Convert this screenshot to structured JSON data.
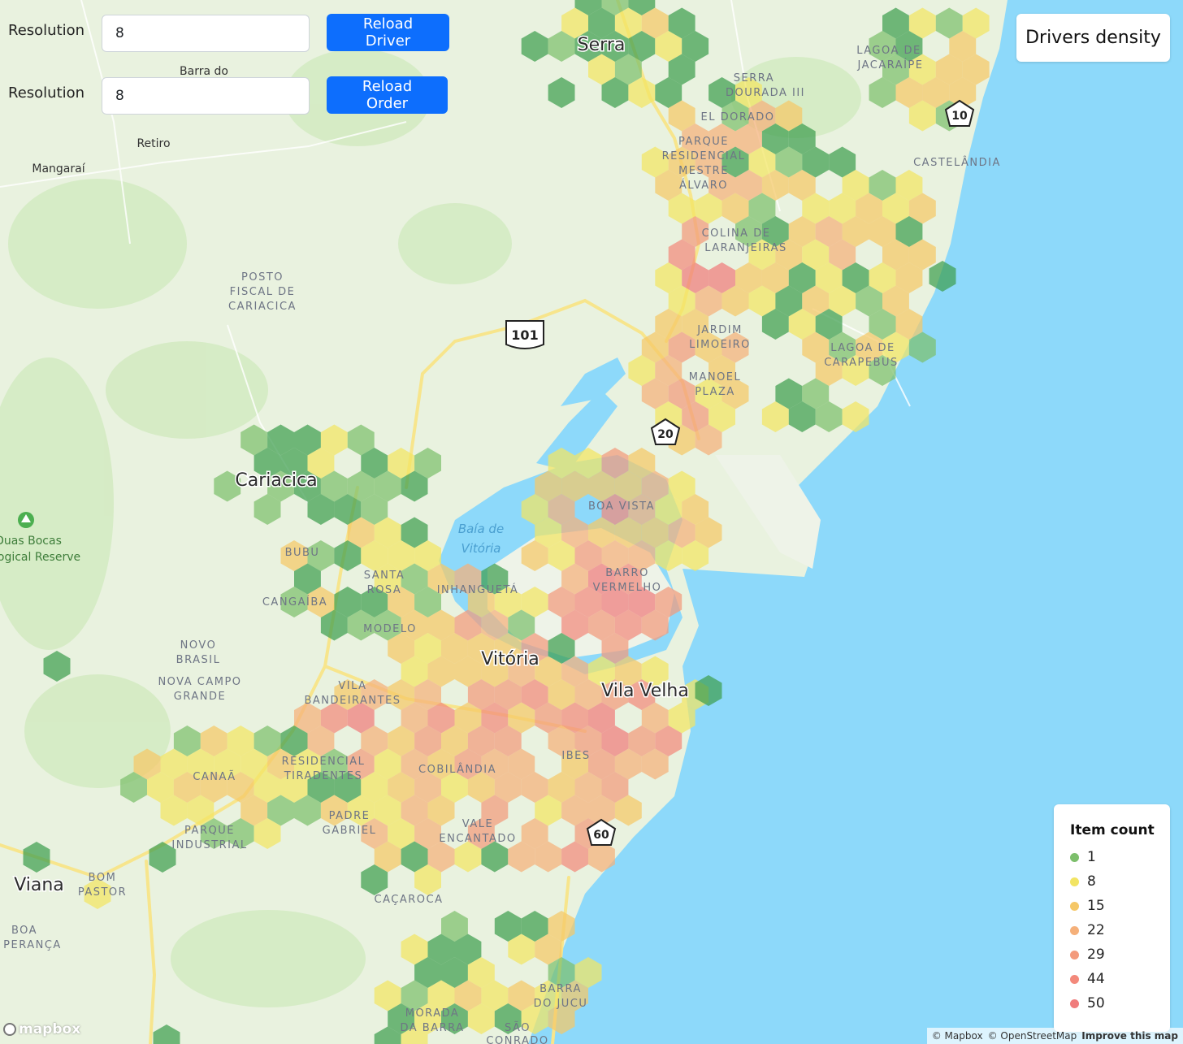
{
  "controls": {
    "driver": {
      "label": "Resolution",
      "value": "8",
      "button": "Reload Driver"
    },
    "order": {
      "label": "Resolution",
      "value": "8",
      "button": "Reload Order"
    }
  },
  "title": "Drivers density",
  "legend": {
    "title": "Item count",
    "items": [
      {
        "label": "1",
        "color": "#7dbf6c"
      },
      {
        "label": "8",
        "color": "#f2e463"
      },
      {
        "label": "15",
        "color": "#f5c767"
      },
      {
        "label": "22",
        "color": "#f5b07a"
      },
      {
        "label": "29",
        "color": "#f39a7c"
      },
      {
        "label": "44",
        "color": "#f3897b"
      },
      {
        "label": "50",
        "color": "#f07c7c"
      }
    ]
  },
  "colors": {
    "land": "#e9f2df",
    "water": "#8dd9fa",
    "road": "#f7e58c",
    "button": "#0d6efd"
  },
  "map": {
    "shields": [
      "101",
      "20",
      "10",
      "60"
    ],
    "labels": [
      {
        "text": "Serra",
        "kind": "city"
      },
      {
        "text": "Cariacica",
        "kind": "city"
      },
      {
        "text": "Vitória",
        "kind": "city"
      },
      {
        "text": "Vila Velha",
        "kind": "city"
      },
      {
        "text": "Viana",
        "kind": "city"
      },
      {
        "text": "Barra do",
        "kind": "place"
      },
      {
        "text": "Retiro",
        "kind": "place"
      },
      {
        "text": "Mangaraí",
        "kind": "place"
      },
      {
        "text": "POSTO",
        "kind": "hood"
      },
      {
        "text": "FISCAL DE",
        "kind": "hood"
      },
      {
        "text": "CARIACICA",
        "kind": "hood"
      },
      {
        "text": "SERRA",
        "kind": "hood"
      },
      {
        "text": "DOURADA III",
        "kind": "hood"
      },
      {
        "text": "EL DORADO",
        "kind": "hood"
      },
      {
        "text": "PARQUE",
        "kind": "hood"
      },
      {
        "text": "RESIDENCIAL",
        "kind": "hood"
      },
      {
        "text": "MESTRE",
        "kind": "hood"
      },
      {
        "text": "ÁLVARO",
        "kind": "hood"
      },
      {
        "text": "LAGOA DE",
        "kind": "hood"
      },
      {
        "text": "JACARAÍPE",
        "kind": "hood"
      },
      {
        "text": "CASTELÂNDIA",
        "kind": "hood"
      },
      {
        "text": "COLINA DE",
        "kind": "hood"
      },
      {
        "text": "LARANJEIRAS",
        "kind": "hood"
      },
      {
        "text": "JARDIM",
        "kind": "hood"
      },
      {
        "text": "LIMOEIRO",
        "kind": "hood"
      },
      {
        "text": "LAGOA DE",
        "kind": "hood"
      },
      {
        "text": "CARAPEBUS",
        "kind": "hood"
      },
      {
        "text": "MANOEL",
        "kind": "hood"
      },
      {
        "text": "PLAZA",
        "kind": "hood"
      },
      {
        "text": "BOA VISTA",
        "kind": "hood"
      },
      {
        "text": "Baía de",
        "kind": "water"
      },
      {
        "text": "Vitória",
        "kind": "water"
      },
      {
        "text": "BUBU",
        "kind": "hood"
      },
      {
        "text": "SANTA",
        "kind": "hood"
      },
      {
        "text": "ROSA",
        "kind": "hood"
      },
      {
        "text": "INHANGUETÁ",
        "kind": "hood"
      },
      {
        "text": "BARRO",
        "kind": "hood"
      },
      {
        "text": "VERMELHO",
        "kind": "hood"
      },
      {
        "text": "CANGAÍBA",
        "kind": "hood"
      },
      {
        "text": "MODELO",
        "kind": "hood"
      },
      {
        "text": "NOVO",
        "kind": "hood"
      },
      {
        "text": "BRASIL",
        "kind": "hood"
      },
      {
        "text": "NOVA CAMPO",
        "kind": "hood"
      },
      {
        "text": "GRANDE",
        "kind": "hood"
      },
      {
        "text": "VILA",
        "kind": "hood"
      },
      {
        "text": "BANDEIRANTES",
        "kind": "hood"
      },
      {
        "text": "RESIDENCIAL",
        "kind": "hood"
      },
      {
        "text": "TIRADENTES",
        "kind": "hood"
      },
      {
        "text": "COBILÂNDIA",
        "kind": "hood"
      },
      {
        "text": "IBES",
        "kind": "hood"
      },
      {
        "text": "CANAÃ",
        "kind": "hood"
      },
      {
        "text": "PADRE",
        "kind": "hood"
      },
      {
        "text": "GABRIEL",
        "kind": "hood"
      },
      {
        "text": "VALE",
        "kind": "hood"
      },
      {
        "text": "ENCANTADO",
        "kind": "hood"
      },
      {
        "text": "PARQUE",
        "kind": "hood"
      },
      {
        "text": "INDUSTRIAL",
        "kind": "hood"
      },
      {
        "text": "BOM",
        "kind": "hood"
      },
      {
        "text": "PASTOR",
        "kind": "hood"
      },
      {
        "text": "BOA",
        "kind": "hood"
      },
      {
        "text": "PERANÇA",
        "kind": "hood"
      },
      {
        "text": "CAÇAROCA",
        "kind": "hood"
      },
      {
        "text": "BARRA",
        "kind": "hood"
      },
      {
        "text": "DO JUCU",
        "kind": "hood"
      },
      {
        "text": "MORADA",
        "kind": "hood"
      },
      {
        "text": "DA BARRA",
        "kind": "hood"
      },
      {
        "text": "SÃO",
        "kind": "hood"
      },
      {
        "text": "CONRADO",
        "kind": "hood"
      },
      {
        "text": "Duas Bocas",
        "kind": "park"
      },
      {
        "text": "ogical Reserve",
        "kind": "park"
      }
    ]
  },
  "attribution": {
    "mapbox": "© Mapbox",
    "osm": "© OpenStreetMap",
    "improve": "Improve this map",
    "logo": "mapbox"
  }
}
